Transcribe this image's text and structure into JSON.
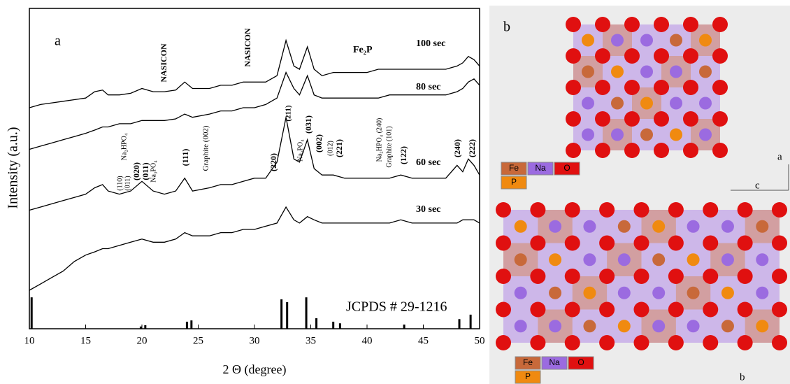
{
  "chart_data": {
    "type": "line",
    "xlabel": "2 Θ (degree)",
    "ylabel": "Intensity (a.u.)",
    "xlim": [
      10,
      50
    ],
    "xticks": [
      10,
      15,
      20,
      25,
      30,
      35,
      40,
      45,
      50
    ],
    "ylim": [
      0,
      100
    ],
    "x": [
      10,
      11,
      12,
      13,
      14,
      15,
      15.8,
      16.5,
      17,
      18,
      19,
      20,
      21,
      22,
      23,
      23.8,
      24.5,
      26,
      27,
      28,
      29,
      30,
      31,
      32,
      32.8,
      33.5,
      34,
      34.7,
      35.3,
      36,
      37,
      38,
      39,
      40,
      41,
      42,
      43,
      44,
      45,
      46,
      47,
      48,
      48.5,
      49,
      49.5,
      50
    ],
    "series": [
      {
        "name": "100 sec",
        "color": "#000000",
        "values": [
          69,
          70,
          70.5,
          71,
          71.5,
          72,
          74,
          74.5,
          73,
          73,
          73.5,
          75,
          74,
          74,
          74.5,
          77,
          75,
          75,
          76,
          76,
          77,
          77,
          77,
          79,
          90,
          82,
          81,
          88,
          81,
          79,
          80,
          80,
          80,
          80,
          81,
          81,
          81,
          81,
          81,
          81,
          81,
          82,
          83,
          85,
          84,
          82
        ]
      },
      {
        "name": "80 sec",
        "color": "#000000",
        "values": [
          56,
          57,
          58,
          59,
          60,
          61,
          62,
          63,
          63,
          64,
          64,
          65,
          65,
          65,
          65.5,
          67,
          66,
          67,
          68,
          68,
          69,
          69,
          70,
          72,
          80,
          75,
          73,
          79,
          73,
          72,
          72,
          72,
          72,
          72,
          72,
          73,
          73,
          73,
          73,
          73,
          73,
          74,
          75,
          77,
          78,
          76
        ]
      },
      {
        "name": "60 sec",
        "color": "#000000",
        "values": [
          37,
          38,
          39,
          40,
          41,
          42,
          44,
          45,
          43,
          42,
          43,
          46,
          43,
          42,
          43,
          47,
          43,
          44,
          45,
          45,
          46,
          47,
          47,
          52,
          66,
          53,
          52,
          59,
          50,
          48,
          48,
          47,
          47,
          47,
          47,
          47,
          48,
          47,
          47,
          47,
          47,
          51,
          49,
          53,
          51,
          48
        ]
      },
      {
        "name": "30 sec",
        "color": "#000000",
        "values": [
          12,
          14,
          16,
          18,
          21,
          23,
          24,
          25,
          25,
          26,
          27,
          28,
          27,
          27,
          28,
          30,
          29,
          29,
          30,
          30,
          31,
          31,
          32,
          33,
          38,
          34,
          33,
          35,
          34,
          33,
          33,
          33,
          33,
          33,
          33,
          33,
          34,
          33,
          33,
          33,
          33,
          33,
          34,
          34,
          34,
          33
        ]
      }
    ],
    "reference": {
      "name": "JCPDS # 29-1216",
      "x": [
        10.2,
        19.9,
        20.3,
        24,
        24.4,
        32.4,
        32.9,
        34.6,
        35.5,
        37,
        37.6,
        43.3,
        48.2,
        49.2
      ],
      "values": [
        9.8,
        0.7,
        1.1,
        2.2,
        2.6,
        9.2,
        8.3,
        9.8,
        3.3,
        2.2,
        1.7,
        1.3,
        3,
        4.4
      ]
    },
    "annotations": [
      "a",
      "NASICON",
      "NASICON",
      "Fe₂P",
      "(110)",
      "(011)",
      "Na₂HPO₄",
      "(020)",
      "(011)",
      "Na₃PO₄",
      "(111)",
      "Graphite  (002)",
      "(220)",
      "(211)",
      "Na₃PO₄",
      "(031)",
      "(002)",
      "(012)",
      "(221)",
      "Na₂HPO₄ (240)",
      "Graphite (101)",
      "(122)",
      "(240)",
      "(222)"
    ]
  },
  "structure": {
    "panel_label": "b",
    "legend_top": [
      "Fe",
      "Na",
      "O",
      "P"
    ],
    "legend_bottom": [
      "Fe",
      "Na",
      "O",
      "P"
    ],
    "axis_labels": [
      "a",
      "c",
      "b"
    ]
  }
}
